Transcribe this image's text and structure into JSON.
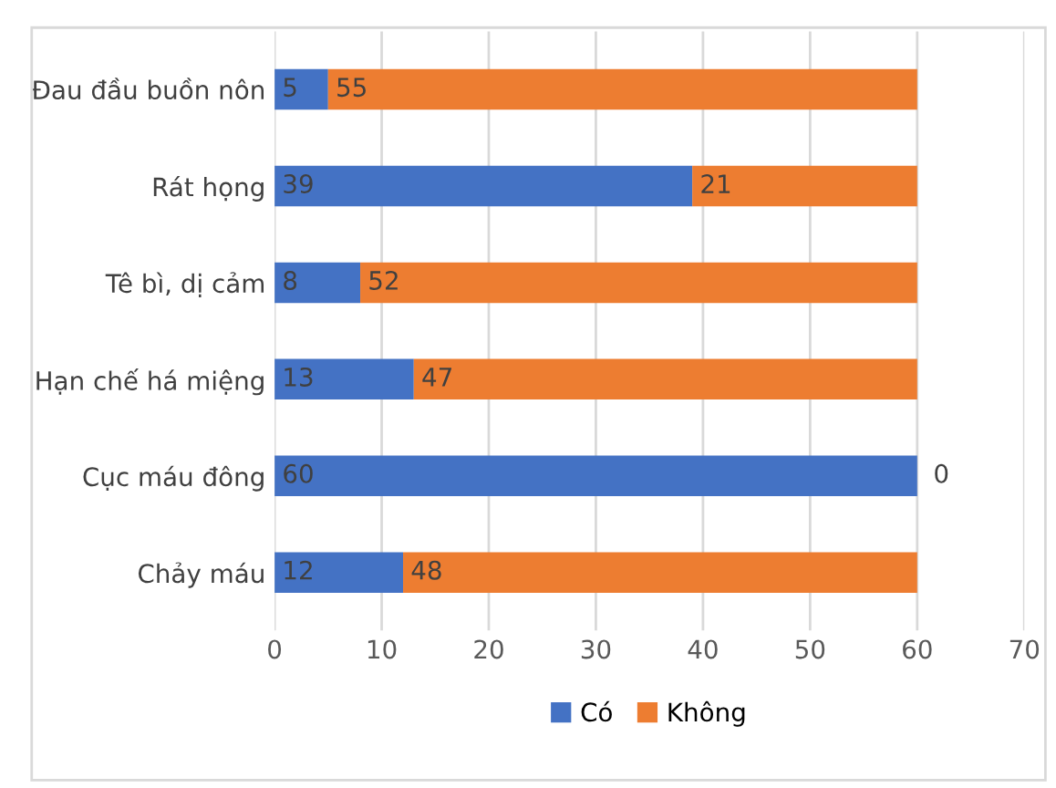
{
  "chart_data": {
    "type": "bar",
    "orientation": "horizontal",
    "stacked": true,
    "categories": [
      "Đau đầu buồn nôn",
      "Rát họng",
      "Tê bì, dị cảm",
      "Hạn chế há miệng",
      "Cục máu đông",
      "Chảy máu"
    ],
    "series": [
      {
        "name": "Có",
        "color": "#4472c4",
        "values": [
          5,
          39,
          8,
          13,
          60,
          12
        ]
      },
      {
        "name": "Không",
        "color": "#ed7d31",
        "values": [
          55,
          21,
          52,
          47,
          0,
          48
        ]
      }
    ],
    "xlim": [
      0,
      70
    ],
    "xticks": [
      0,
      10,
      20,
      30,
      40,
      50,
      60,
      70
    ],
    "grid": "x",
    "legend": "bottom",
    "data_labels": true
  }
}
